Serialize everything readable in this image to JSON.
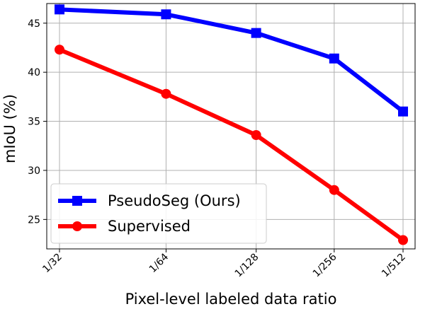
{
  "chart_data": {
    "type": "line",
    "xlabel": "Pixel-level labeled data ratio",
    "ylabel": "mIoU (%)",
    "categories": [
      "1/32",
      "1/64",
      "1/128",
      "1/256",
      "1/512"
    ],
    "x_positions_log2": [
      5,
      6,
      7,
      8,
      9
    ],
    "x_scale": "log-log",
    "ylim": [
      22,
      47
    ],
    "yticks": [
      25,
      30,
      35,
      40,
      45
    ],
    "grid": true,
    "legend_position": "lower-left",
    "series": [
      {
        "name": "PseudoSeg (Ours)",
        "color": "#0000ff",
        "marker": "square",
        "values": [
          46.4,
          45.9,
          44.0,
          41.4,
          36.0
        ]
      },
      {
        "name": "Supervised",
        "color": "#ff0000",
        "marker": "circle",
        "values": [
          42.3,
          37.8,
          33.6,
          28.0,
          22.9
        ]
      }
    ]
  }
}
